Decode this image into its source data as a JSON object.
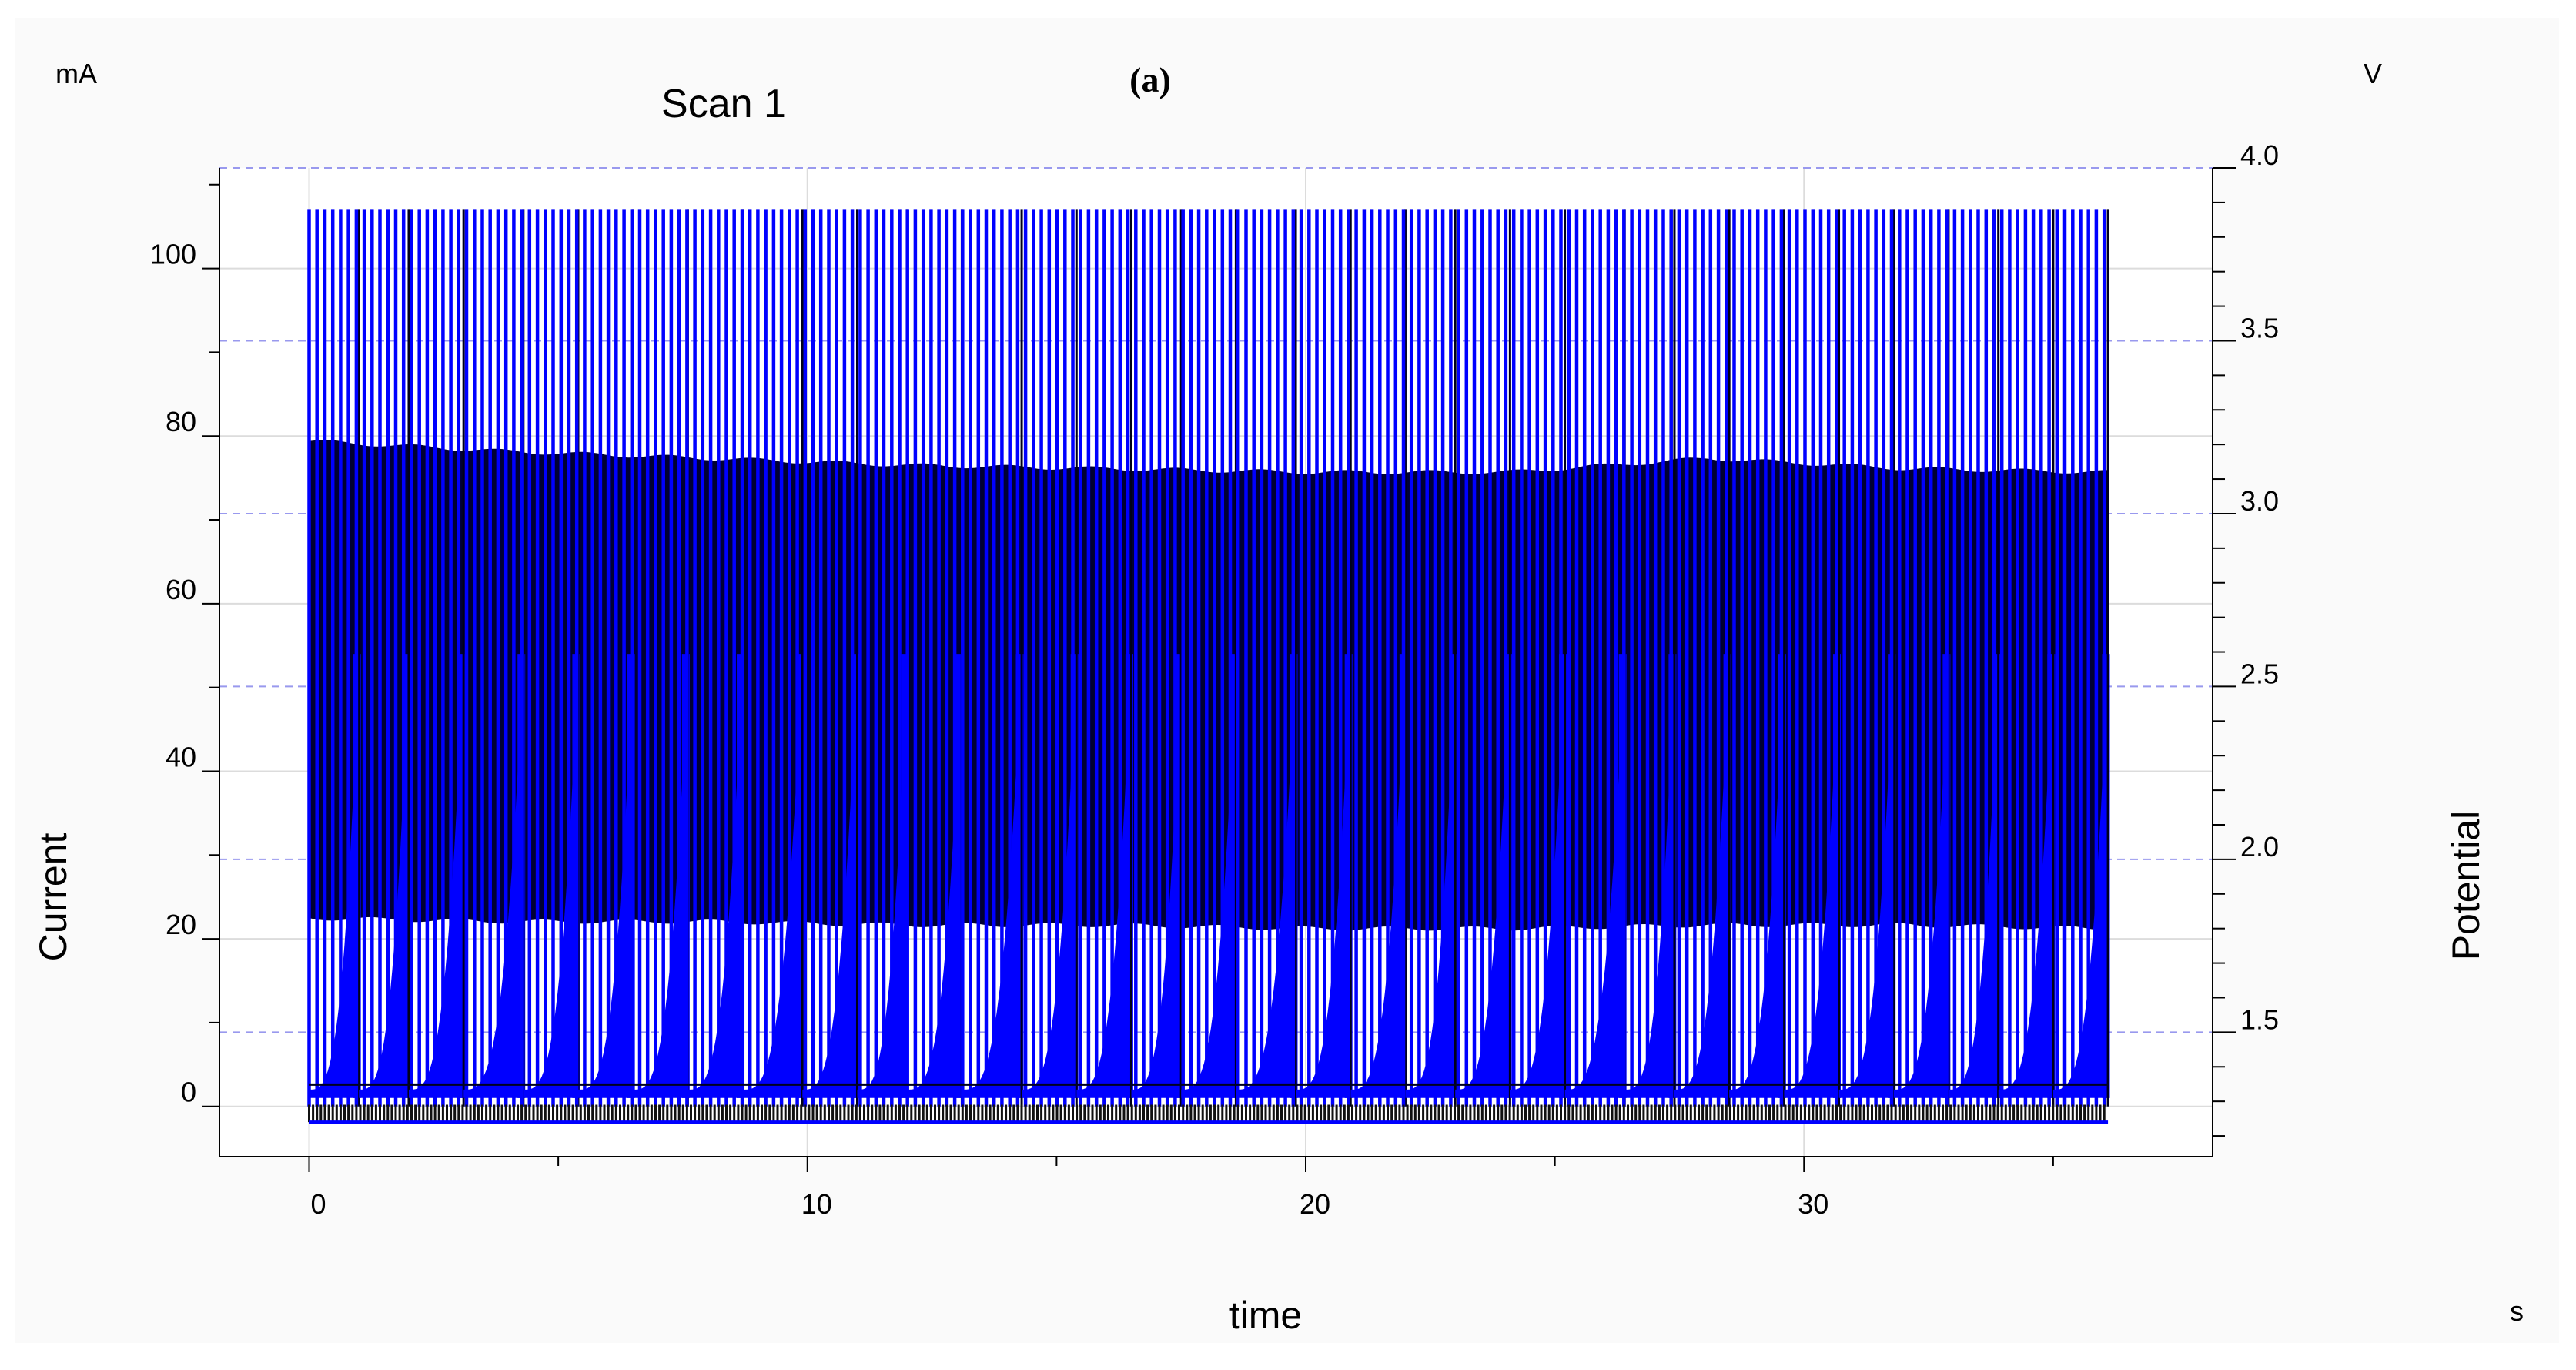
{
  "figure": {
    "panel_label": "(a)",
    "colors": {
      "background": "#ffffff",
      "figure_bg": "#fafafa",
      "grid": "#dcdcdc",
      "potential_grid": "#9999ee",
      "current_series": "#0000ff",
      "potential_series": "#000033"
    }
  },
  "chart_data": {
    "type": "line",
    "title": "Scan 1",
    "xlabel": "time",
    "x_unit": "s",
    "ylabel": "Current",
    "y_unit": "mA",
    "y2label": "Potential",
    "y2_unit": "V",
    "xlim": [
      -1.8,
      38.2
    ],
    "ylim": [
      -6,
      112
    ],
    "y2lim": [
      1.14,
      4.0
    ],
    "x_ticks": [
      "0",
      "10",
      "20",
      "30"
    ],
    "y_ticks": [
      "0",
      "20",
      "40",
      "60",
      "80",
      "100"
    ],
    "y2_ticks": [
      "1.5",
      "2.0",
      "2.5",
      "3.0",
      "3.5",
      "4.0"
    ],
    "grid": true,
    "legend": "none",
    "pulse_train": {
      "t_start": 0,
      "t_end": 36.1,
      "pulse_period_s": 0.158,
      "current_peak_mA": 107,
      "potential_high_V": [
        3.21,
        3.18,
        3.16,
        3.14,
        3.13,
        3.12,
        3.12,
        3.16,
        3.13,
        3.12
      ],
      "potential_low_V": [
        1.83,
        1.82,
        1.82,
        1.81,
        1.81,
        1.8,
        1.8,
        1.81,
        1.81,
        1.8
      ],
      "potential_floor_V": 1.24,
      "sequence_boundaries_s": [
        0,
        1.0,
        2.0,
        3.1,
        4.3,
        5.4,
        6.5,
        7.6,
        8.7,
        9.9,
        11.0,
        12.0,
        13.1,
        14.3,
        15.4,
        16.5,
        17.5,
        18.6,
        19.8,
        20.9,
        22.0,
        23.0,
        24.1,
        25.2,
        26.4,
        27.4,
        28.5,
        29.6,
        30.7,
        31.8,
        32.9,
        33.9,
        35.0,
        36.1
      ]
    },
    "series": [
      {
        "name": "",
        "axis": "left",
        "description_key": "current_series"
      },
      {
        "name": "",
        "axis": "right",
        "description_key": "potential_series"
      }
    ]
  }
}
